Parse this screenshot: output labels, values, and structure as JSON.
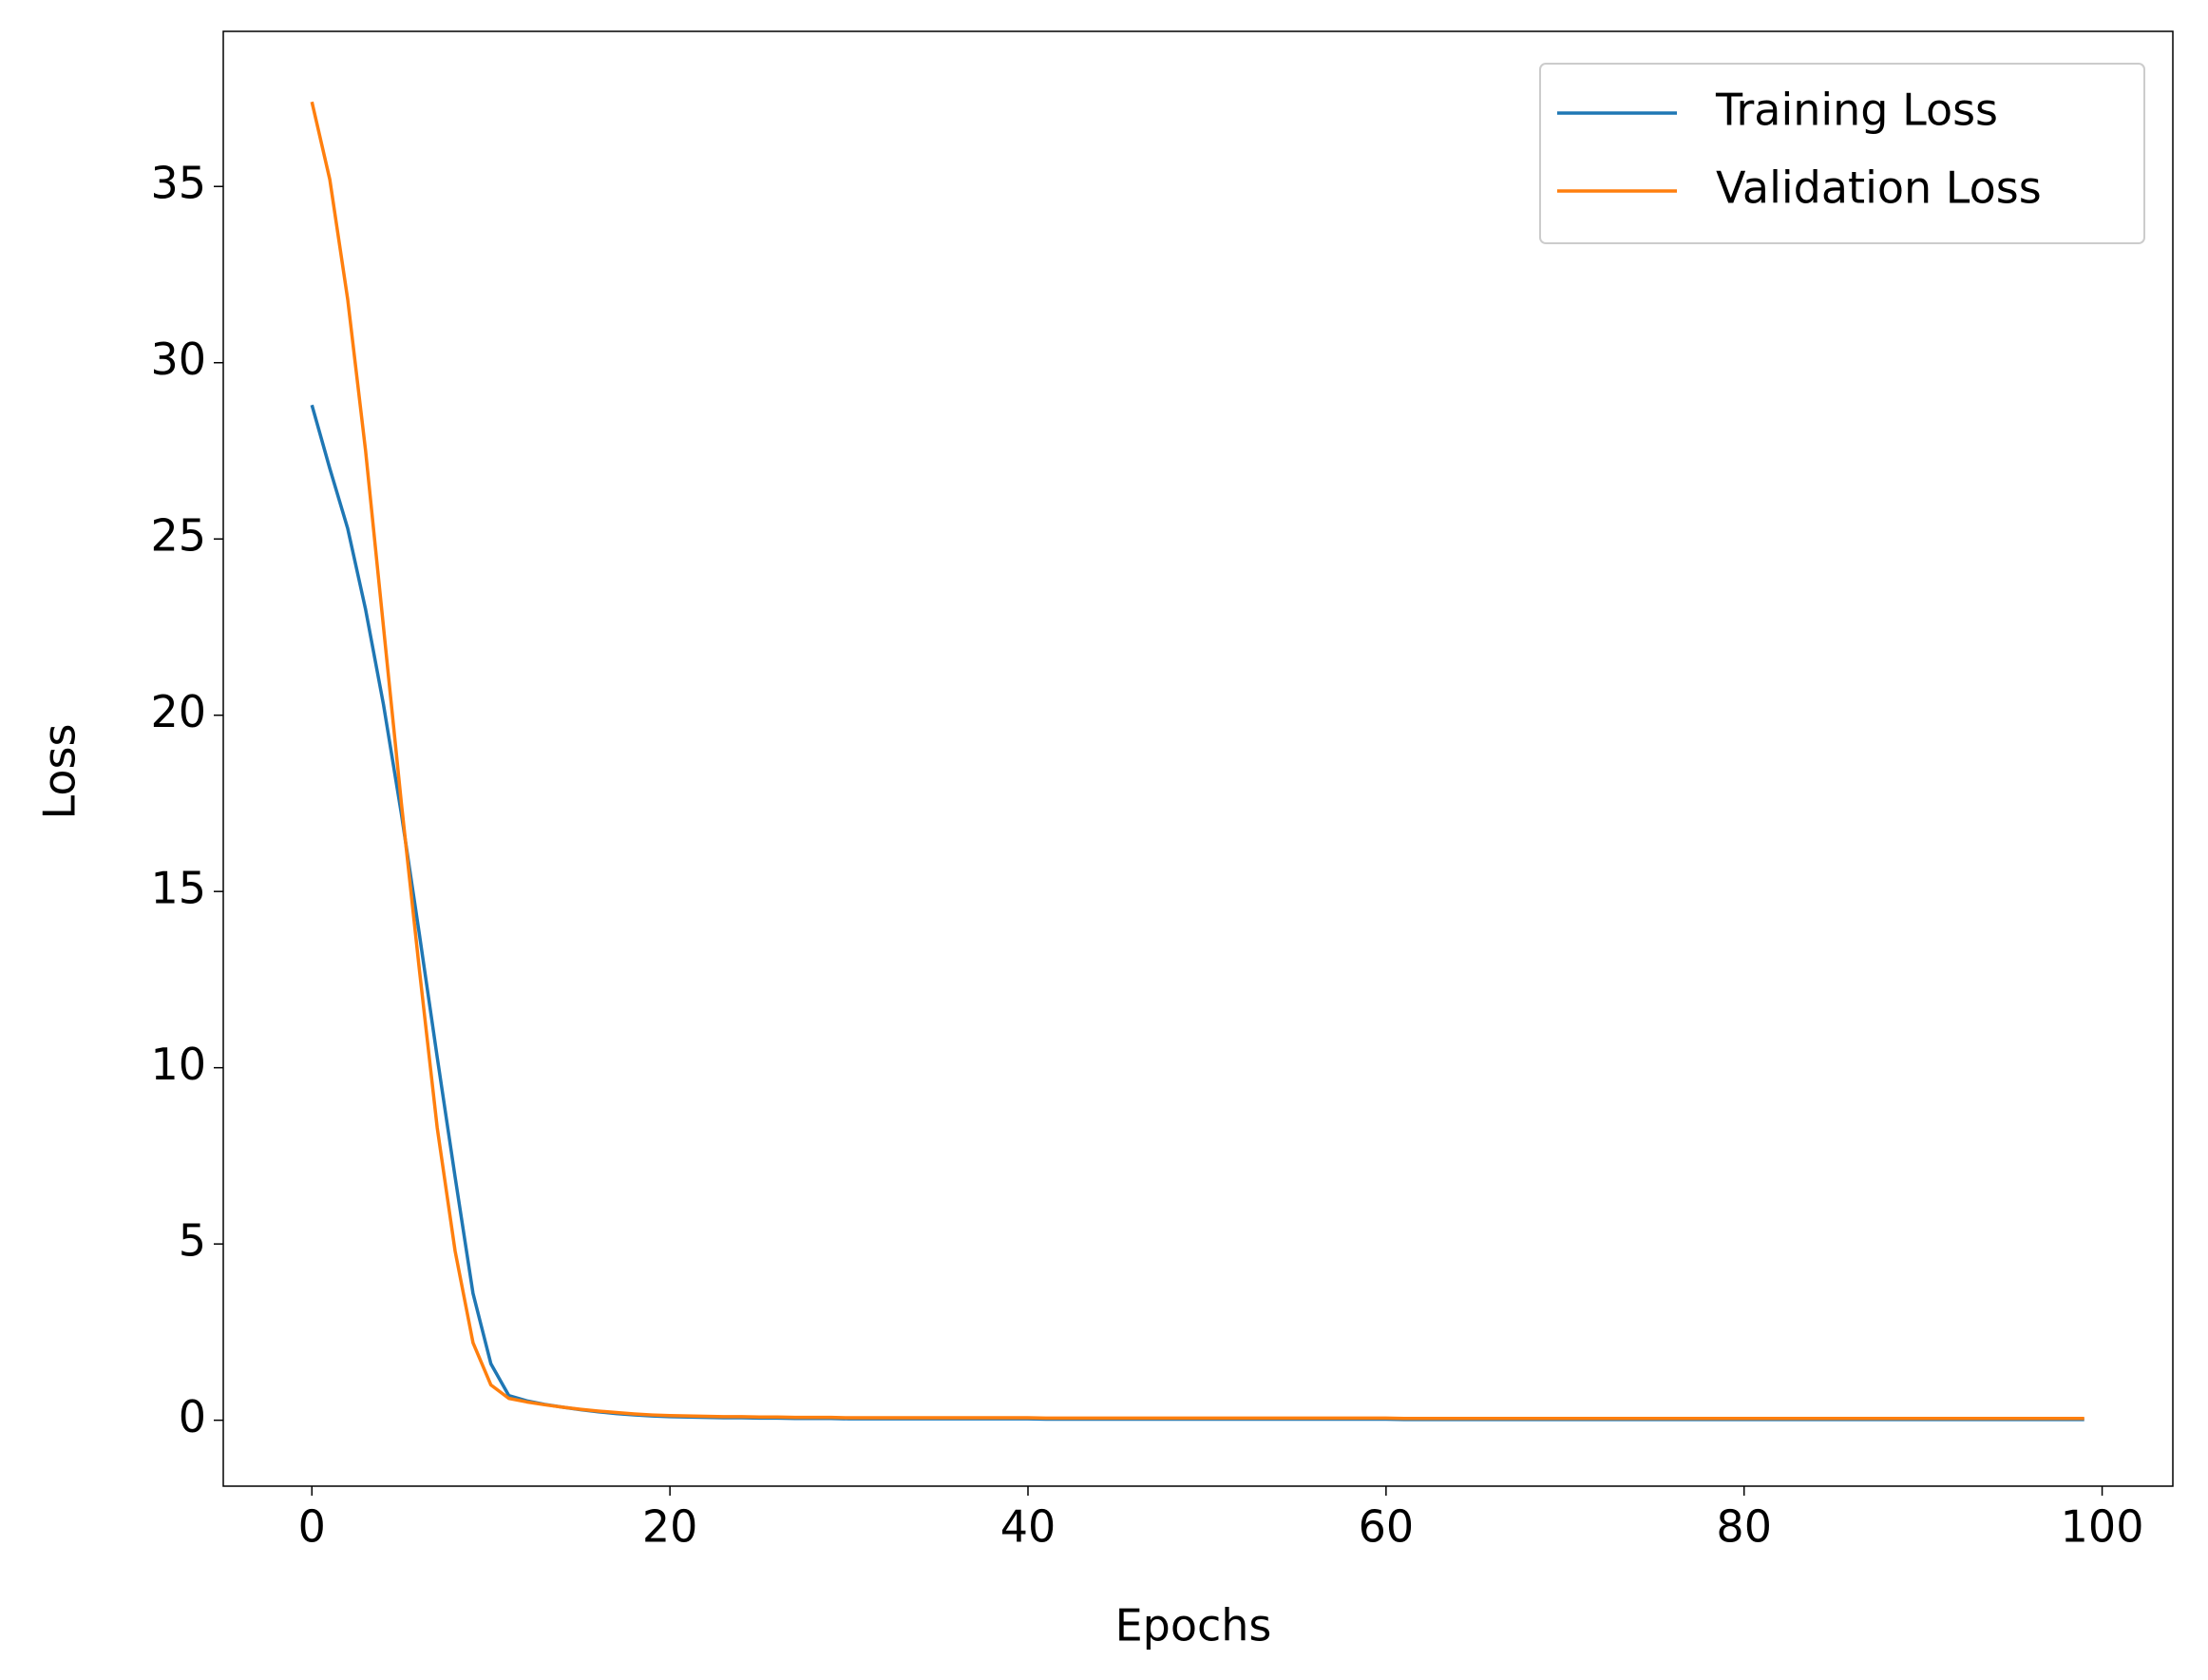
{
  "chart_data": {
    "type": "line",
    "xlabel": "Epochs",
    "ylabel": "Loss",
    "x": [
      0,
      1,
      2,
      3,
      4,
      5,
      6,
      7,
      8,
      9,
      10,
      11,
      12,
      13,
      14,
      15,
      16,
      17,
      18,
      19,
      20,
      21,
      22,
      23,
      24,
      25,
      26,
      27,
      28,
      29,
      30,
      31,
      32,
      33,
      34,
      35,
      36,
      37,
      38,
      39,
      40,
      41,
      42,
      43,
      44,
      45,
      46,
      47,
      48,
      49,
      50,
      51,
      52,
      53,
      54,
      55,
      56,
      57,
      58,
      59,
      60,
      61,
      62,
      63,
      64,
      65,
      66,
      67,
      68,
      69,
      70,
      71,
      72,
      73,
      74,
      75,
      76,
      77,
      78,
      79,
      80,
      81,
      82,
      83,
      84,
      85,
      86,
      87,
      88,
      89,
      90,
      91,
      92,
      93,
      94,
      95,
      96,
      97,
      98,
      99
    ],
    "series": [
      {
        "name": "Training Loss",
        "color": "#1f77b4",
        "values": [
          28.8,
          27.0,
          25.3,
          23.0,
          20.3,
          17.2,
          13.8,
          10.3,
          6.9,
          3.6,
          1.6,
          0.7,
          0.55,
          0.45,
          0.37,
          0.3,
          0.24,
          0.19,
          0.15,
          0.12,
          0.1,
          0.09,
          0.08,
          0.07,
          0.07,
          0.06,
          0.06,
          0.05,
          0.05,
          0.05,
          0.04,
          0.04,
          0.04,
          0.04,
          0.04,
          0.04,
          0.04,
          0.04,
          0.04,
          0.04,
          0.04,
          0.03,
          0.03,
          0.03,
          0.03,
          0.03,
          0.03,
          0.03,
          0.03,
          0.03,
          0.03,
          0.03,
          0.03,
          0.03,
          0.03,
          0.03,
          0.03,
          0.03,
          0.03,
          0.03,
          0.03,
          0.02,
          0.02,
          0.02,
          0.02,
          0.02,
          0.02,
          0.02,
          0.02,
          0.02,
          0.02,
          0.02,
          0.02,
          0.02,
          0.02,
          0.02,
          0.02,
          0.02,
          0.02,
          0.02,
          0.02,
          0.02,
          0.02,
          0.02,
          0.02,
          0.02,
          0.02,
          0.02,
          0.02,
          0.02,
          0.02,
          0.02,
          0.02,
          0.02,
          0.02,
          0.02,
          0.02,
          0.02,
          0.02,
          0.02
        ]
      },
      {
        "name": "Validation Loss",
        "color": "#ff7f0e",
        "values": [
          37.4,
          35.2,
          31.8,
          27.5,
          22.5,
          17.5,
          12.8,
          8.3,
          4.8,
          2.2,
          1.0,
          0.62,
          0.52,
          0.44,
          0.37,
          0.31,
          0.26,
          0.22,
          0.18,
          0.15,
          0.13,
          0.12,
          0.11,
          0.1,
          0.1,
          0.09,
          0.09,
          0.08,
          0.08,
          0.08,
          0.07,
          0.07,
          0.07,
          0.07,
          0.07,
          0.07,
          0.07,
          0.07,
          0.07,
          0.07,
          0.07,
          0.06,
          0.06,
          0.06,
          0.06,
          0.06,
          0.06,
          0.06,
          0.06,
          0.06,
          0.06,
          0.06,
          0.06,
          0.06,
          0.06,
          0.06,
          0.06,
          0.06,
          0.06,
          0.06,
          0.06,
          0.05,
          0.05,
          0.05,
          0.05,
          0.05,
          0.05,
          0.05,
          0.05,
          0.05,
          0.05,
          0.05,
          0.05,
          0.05,
          0.05,
          0.05,
          0.05,
          0.05,
          0.05,
          0.05,
          0.05,
          0.05,
          0.05,
          0.05,
          0.05,
          0.05,
          0.05,
          0.05,
          0.05,
          0.05,
          0.05,
          0.05,
          0.05,
          0.05,
          0.05,
          0.05,
          0.05,
          0.05,
          0.05,
          0.05
        ]
      }
    ],
    "xlim": [
      -4.95,
      103.95
    ],
    "xticks": [
      0,
      20,
      40,
      60,
      80,
      100
    ],
    "ylim": [
      -1.87,
      39.4
    ],
    "yticks": [
      0,
      5,
      10,
      15,
      20,
      25,
      30,
      35
    ],
    "grid": false,
    "legend": "upper right"
  }
}
